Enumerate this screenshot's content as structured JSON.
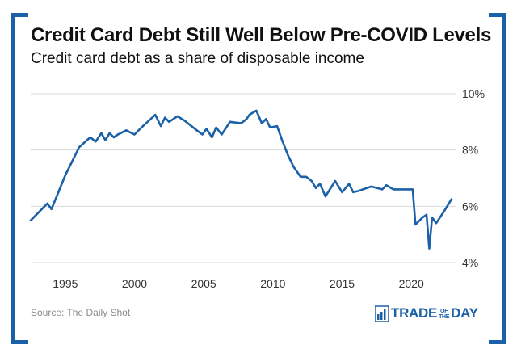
{
  "header": {
    "title": "Credit Card Debt Still Well Below Pre-COVID Levels",
    "subtitle": "Credit card debt as a share of disposable income"
  },
  "footer": {
    "source": "Source: The Daily Shot",
    "brand": {
      "part1": "TRADE",
      "part2a": "OF",
      "part2b": "THE",
      "part3": "DAY"
    }
  },
  "colors": {
    "line": "#1b61a8",
    "grid": "#d9d9d9",
    "axis_text": "#333333",
    "frame": "#1b61a8"
  },
  "chart_data": {
    "type": "line",
    "title": "Credit Card Debt Still Well Below Pre-COVID Levels",
    "subtitle": "Credit card debt as a share of disposable income",
    "xlabel": "",
    "ylabel": "",
    "xlim": [
      1992.5,
      2023.2
    ],
    "ylim": [
      4,
      10
    ],
    "yticks": [
      4,
      6,
      8,
      10
    ],
    "ytick_labels": [
      "4%",
      "6%",
      "8%",
      "10%"
    ],
    "xticks": [
      1995,
      2000,
      2005,
      2010,
      2015,
      2020
    ],
    "xtick_labels": [
      "1995",
      "2000",
      "2005",
      "2010",
      "2015",
      "2020"
    ],
    "grid": "horizontal",
    "y_axis_side": "right",
    "series": [
      {
        "x": [
          1992.5,
          1993.7,
          1994.0,
          1994.5,
          1995.0,
          1996.0,
          1996.8,
          1997.2,
          1997.6,
          1997.9,
          1998.2,
          1998.5,
          1998.8,
          1999.0,
          1999.4,
          2000.0,
          2000.5,
          2001.5,
          2001.9,
          2002.2,
          2002.5,
          2003.1,
          2003.6,
          2004.5,
          2004.9,
          2005.2,
          2005.6,
          2005.9,
          2006.3,
          2006.9,
          2007.7,
          2008.1,
          2008.3,
          2008.8,
          2009.2,
          2009.5,
          2009.8,
          2010.3,
          2010.7,
          2011.1,
          2011.5,
          2012.0,
          2012.4,
          2012.8,
          2013.1,
          2013.4,
          2013.8,
          2014.5,
          2015.0,
          2015.5,
          2015.8,
          2016.2,
          2017.1,
          2017.9,
          2018.2,
          2018.7,
          2019.5,
          2020.1,
          2020.3,
          2020.8,
          2021.1,
          2021.3,
          2021.5,
          2021.8,
          2022.4,
          2022.9
        ],
        "values": [
          5.5,
          6.1,
          5.9,
          6.5,
          7.1,
          8.1,
          8.45,
          8.3,
          8.6,
          8.35,
          8.6,
          8.45,
          8.55,
          8.6,
          8.7,
          8.55,
          8.8,
          9.25,
          8.85,
          9.15,
          9.0,
          9.2,
          9.05,
          8.7,
          8.55,
          8.75,
          8.45,
          8.8,
          8.55,
          9.0,
          8.95,
          9.1,
          9.25,
          9.4,
          8.95,
          9.1,
          8.8,
          8.85,
          8.3,
          7.8,
          7.4,
          7.05,
          7.05,
          6.9,
          6.65,
          6.8,
          6.35,
          6.9,
          6.5,
          6.8,
          6.5,
          6.55,
          6.7,
          6.6,
          6.75,
          6.6,
          6.6,
          6.6,
          5.35,
          5.6,
          5.7,
          4.5,
          5.6,
          5.4,
          5.85,
          6.25
        ]
      }
    ]
  }
}
